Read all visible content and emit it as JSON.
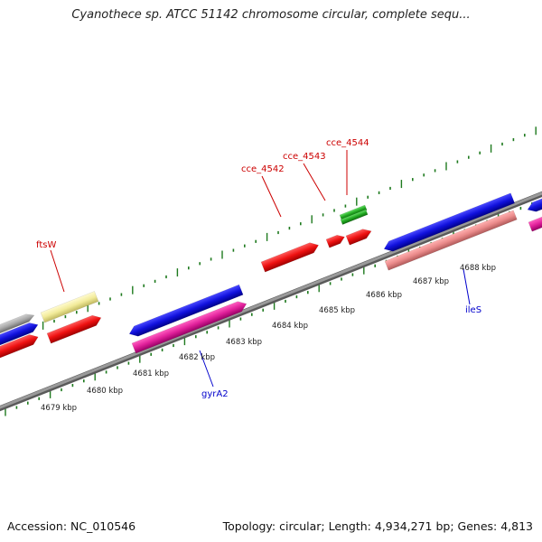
{
  "header": {
    "title": "Cyanothece sp. ATCC 51142 chromosome circular, complete sequ..."
  },
  "footer": {
    "accession": "Accession: NC_010546",
    "summary": "Topology: circular; Length: 4,934,271 bp; Genes: 4,813"
  },
  "scale_ticks": [
    {
      "label": "4679 kbp"
    },
    {
      "label": "4680 kbp"
    },
    {
      "label": "4681 kbp"
    },
    {
      "label": "4682 kbp"
    },
    {
      "label": "4683 kbp"
    },
    {
      "label": "4684 kbp"
    },
    {
      "label": "4685 kbp"
    },
    {
      "label": "4686 kbp"
    },
    {
      "label": "4687 kbp"
    },
    {
      "label": "4688 kbp"
    }
  ],
  "gene_labels": {
    "ftsW": "ftsW",
    "cce_4542": "cce_4542",
    "cce_4543": "cce_4543",
    "cce_4544": "cce_4544",
    "gyrA2": "gyrA2",
    "ileS": "ileS"
  },
  "colors": {
    "backbone": "#808080",
    "tick": "#1e7a1e",
    "red": "#ee1111",
    "blue": "#1111dd",
    "magenta": "#e0209a",
    "pink": "#ea8a8a",
    "yellow": "#f2eb9a",
    "green": "#22aa22",
    "gray": "#a8a8a8",
    "label_red": "#cc0000",
    "label_blue": "#0000cc"
  }
}
